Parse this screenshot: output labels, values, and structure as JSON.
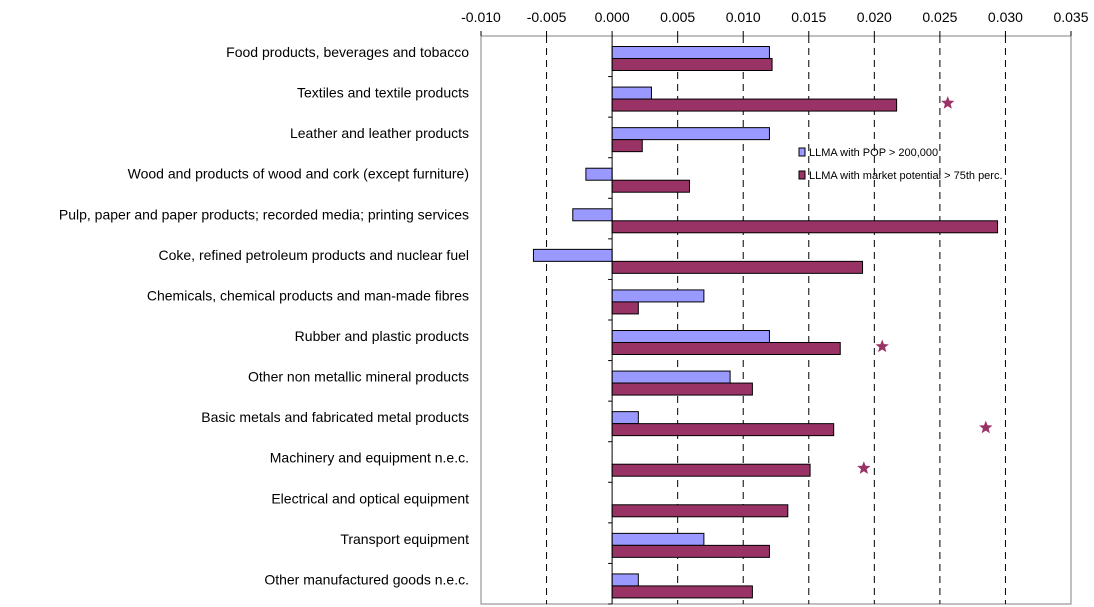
{
  "chart_data": {
    "type": "bar",
    "orientation": "horizontal",
    "title": "",
    "xlabel": "",
    "ylabel": "",
    "xlim": [
      -0.01,
      0.035
    ],
    "x_ticks": [
      -0.01,
      -0.005,
      0.0,
      0.005,
      0.01,
      0.015,
      0.02,
      0.025,
      0.03,
      0.035
    ],
    "x_tick_labels": [
      "-0.010",
      "-0.005",
      "0.000",
      "0.005",
      "0.010",
      "0.015",
      "0.020",
      "0.025",
      "0.030",
      "0.035"
    ],
    "x_axis_position": "top",
    "grid": "vertical dashed",
    "legend_position": "right, upper-middle",
    "categories": [
      "Food products, beverages and tobacco",
      "Textiles and textile products",
      "Leather and leather products",
      "Wood and products of wood and cork (except furniture)",
      "Pulp, paper and paper products; recorded media; printing services",
      "Coke, refined petroleum products and nuclear fuel",
      "Chemicals, chemical products and man-made fibres",
      "Rubber and plastic products",
      "Other non metallic mineral products",
      "Basic metals and fabricated metal products",
      "Machinery and equipment n.e.c.",
      "Electrical and optical equipment",
      "Transport equipment",
      "Other manufactured goods n.e.c."
    ],
    "series": [
      {
        "name": "LLMA with POP > 200,000",
        "color": "#9999ff",
        "values": [
          0.012,
          0.003,
          0.012,
          -0.002,
          -0.003,
          -0.006,
          0.007,
          0.012,
          0.009,
          0.002,
          0.0,
          0.0,
          0.007,
          0.002
        ]
      },
      {
        "name": "LLMA with market potential > 75th perc.",
        "color": "#993366",
        "values": [
          0.0122,
          0.0217,
          0.0023,
          0.0059,
          0.0294,
          0.0191,
          0.002,
          0.0174,
          0.0107,
          0.0169,
          0.0151,
          0.0134,
          0.012,
          0.0107
        ]
      }
    ],
    "markers": [
      {
        "category": "Textiles and textile products",
        "x": 0.0256,
        "symbol": "star"
      },
      {
        "category": "Rubber and plastic products",
        "x": 0.0206,
        "symbol": "star"
      },
      {
        "category": "Basic metals and fabricated metal products",
        "x": 0.0285,
        "symbol": "star"
      },
      {
        "category": "Machinery and equipment n.e.c.",
        "x": 0.0192,
        "symbol": "star"
      }
    ],
    "marker_color": "#993366"
  }
}
